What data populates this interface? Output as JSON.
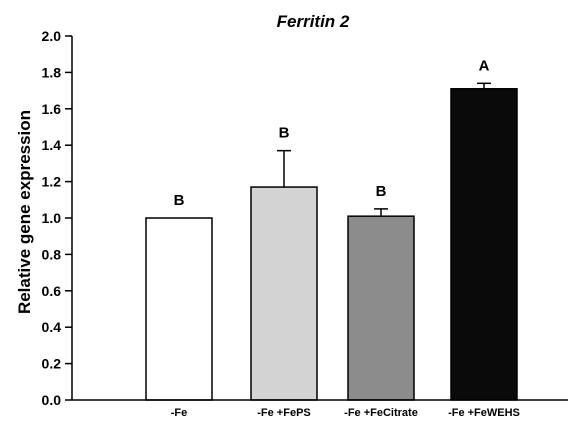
{
  "chart_data": {
    "type": "bar",
    "title": "Ferritin 2",
    "ylabel": "Relative gene expression",
    "xlabel": "",
    "ylim": [
      0,
      2.0
    ],
    "yticks": [
      "0.0",
      "0.2",
      "0.4",
      "0.6",
      "0.8",
      "1.0",
      "1.2",
      "1.4",
      "1.6",
      "1.8",
      "2.0"
    ],
    "categories": [
      "-Fe",
      "-Fe +FePS",
      "-Fe +FeCitrate",
      "-Fe +FeWEHS"
    ],
    "values": [
      1.0,
      1.17,
      1.01,
      1.71
    ],
    "errors": [
      0.0,
      0.2,
      0.04,
      0.03
    ],
    "significance": [
      "B",
      "B",
      "B",
      "A"
    ],
    "bar_colors": [
      "#ffffff",
      "#d3d3d3",
      "#8c8c8c",
      "#0a0a0a"
    ],
    "grid": false,
    "legend": "none"
  }
}
